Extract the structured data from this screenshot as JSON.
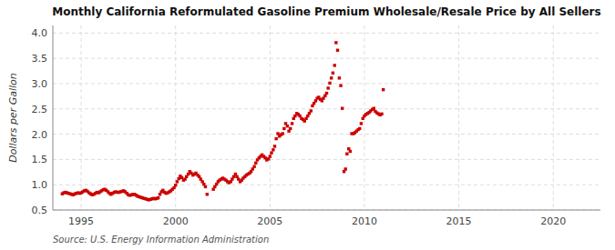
{
  "chart_data": {
    "type": "scatter",
    "title": "Monthly California Reformulated Gasoline Premium Wholesale/Resale Price by All Sellers",
    "ylabel": "Dollars per Gallon",
    "annotations": [
      "Source: U.S. Energy Information Administration"
    ],
    "xlim": [
      1993.5,
      2022.5
    ],
    "ylim": [
      0.5,
      4.15
    ],
    "xticks": [
      1995,
      2000,
      2005,
      2010,
      2015,
      2020
    ],
    "yticks": [
      0.5,
      {
        "value": 1.0,
        "label": "1.0"
      },
      1.5,
      {
        "value": 2.0,
        "label": "2.0"
      },
      2.5,
      {
        "value": 3.0,
        "label": "3.0"
      },
      3.5,
      {
        "value": 4.0,
        "label": "4.0"
      }
    ],
    "color": "#cc0000",
    "marker": "square",
    "grid": true,
    "x": [
      1994.0,
      1994.08,
      1994.17,
      1994.25,
      1994.33,
      1994.42,
      1994.5,
      1994.58,
      1994.67,
      1994.75,
      1994.83,
      1994.92,
      1995.0,
      1995.08,
      1995.17,
      1995.25,
      1995.33,
      1995.42,
      1995.5,
      1995.58,
      1995.67,
      1995.75,
      1995.83,
      1995.92,
      1996.0,
      1996.08,
      1996.17,
      1996.25,
      1996.33,
      1996.42,
      1996.5,
      1996.58,
      1996.67,
      1996.75,
      1996.83,
      1996.92,
      1997.0,
      1997.08,
      1997.17,
      1997.25,
      1997.33,
      1997.42,
      1997.5,
      1997.58,
      1997.67,
      1997.75,
      1997.83,
      1997.92,
      1998.0,
      1998.08,
      1998.17,
      1998.25,
      1998.33,
      1998.42,
      1998.5,
      1998.58,
      1998.67,
      1998.75,
      1998.83,
      1998.92,
      1999.0,
      1999.08,
      1999.17,
      1999.25,
      1999.33,
      1999.42,
      1999.5,
      1999.58,
      1999.67,
      1999.75,
      1999.83,
      1999.92,
      2000.0,
      2000.08,
      2000.17,
      2000.25,
      2000.33,
      2000.42,
      2000.5,
      2000.58,
      2000.67,
      2000.75,
      2000.83,
      2000.92,
      2001.0,
      2001.08,
      2001.17,
      2001.25,
      2001.33,
      2001.42,
      2001.5,
      2001.58,
      2001.67,
      2002.0,
      2002.08,
      2002.17,
      2002.25,
      2002.33,
      2002.42,
      2002.5,
      2002.58,
      2002.67,
      2002.75,
      2002.83,
      2002.92,
      2003.0,
      2003.08,
      2003.17,
      2003.25,
      2003.33,
      2003.42,
      2003.5,
      2003.58,
      2003.67,
      2003.75,
      2003.83,
      2003.92,
      2004.0,
      2004.08,
      2004.17,
      2004.25,
      2004.33,
      2004.42,
      2004.5,
      2004.58,
      2004.67,
      2004.75,
      2004.83,
      2004.92,
      2005.0,
      2005.08,
      2005.17,
      2005.25,
      2005.33,
      2005.42,
      2005.5,
      2005.58,
      2005.67,
      2005.75,
      2005.83,
      2005.92,
      2006.0,
      2006.08,
      2006.17,
      2006.25,
      2006.33,
      2006.42,
      2006.5,
      2006.58,
      2006.67,
      2006.75,
      2006.83,
      2006.92,
      2007.0,
      2007.08,
      2007.17,
      2007.25,
      2007.33,
      2007.42,
      2007.5,
      2007.58,
      2007.67,
      2007.75,
      2007.83,
      2007.92,
      2008.0,
      2008.08,
      2008.17,
      2008.25,
      2008.33,
      2008.42,
      2008.5,
      2008.58,
      2008.67,
      2008.75,
      2008.83,
      2008.92,
      2009.0,
      2009.08,
      2009.17,
      2009.25,
      2009.33,
      2009.42,
      2009.5,
      2009.58,
      2009.67,
      2009.75,
      2009.83,
      2009.92,
      2010.0,
      2010.08,
      2010.17,
      2010.25,
      2010.33,
      2010.42,
      2010.5,
      2010.58,
      2010.67,
      2010.75,
      2010.83,
      2010.92,
      2011.0
    ],
    "values": [
      0.82,
      0.84,
      0.85,
      0.84,
      0.83,
      0.82,
      0.81,
      0.8,
      0.82,
      0.83,
      0.84,
      0.83,
      0.84,
      0.86,
      0.88,
      0.89,
      0.87,
      0.84,
      0.82,
      0.8,
      0.81,
      0.83,
      0.85,
      0.84,
      0.86,
      0.88,
      0.9,
      0.91,
      0.89,
      0.86,
      0.83,
      0.81,
      0.83,
      0.85,
      0.86,
      0.85,
      0.85,
      0.86,
      0.87,
      0.88,
      0.86,
      0.83,
      0.8,
      0.79,
      0.8,
      0.81,
      0.81,
      0.79,
      0.77,
      0.76,
      0.75,
      0.74,
      0.73,
      0.72,
      0.71,
      0.7,
      0.71,
      0.72,
      0.73,
      0.72,
      0.73,
      0.74,
      0.81,
      0.86,
      0.89,
      0.85,
      0.83,
      0.84,
      0.86,
      0.88,
      0.91,
      0.94,
      0.99,
      1.06,
      1.12,
      1.17,
      1.14,
      1.09,
      1.11,
      1.16,
      1.21,
      1.26,
      1.23,
      1.19,
      1.21,
      1.23,
      1.19,
      1.16,
      1.11,
      1.06,
      1.01,
      0.96,
      0.81,
      0.91,
      0.96,
      1.01,
      1.06,
      1.09,
      1.11,
      1.13,
      1.11,
      1.09,
      1.06,
      1.04,
      1.06,
      1.11,
      1.16,
      1.21,
      1.16,
      1.11,
      1.06,
      1.09,
      1.13,
      1.16,
      1.19,
      1.21,
      1.23,
      1.26,
      1.31,
      1.36,
      1.43,
      1.49,
      1.53,
      1.56,
      1.59,
      1.56,
      1.53,
      1.49,
      1.51,
      1.56,
      1.63,
      1.69,
      1.76,
      1.91,
      2.01,
      1.96,
      1.99,
      2.01,
      2.11,
      2.21,
      2.16,
      2.06,
      2.11,
      2.21,
      2.31,
      2.36,
      2.41,
      2.39,
      2.36,
      2.31,
      2.29,
      2.26,
      2.31,
      2.36,
      2.41,
      2.46,
      2.56,
      2.61,
      2.66,
      2.71,
      2.73,
      2.69,
      2.66,
      2.71,
      2.76,
      2.81,
      2.91,
      3.01,
      3.11,
      3.21,
      3.36,
      3.81,
      3.66,
      3.11,
      2.96,
      2.51,
      1.26,
      1.31,
      1.61,
      1.71,
      1.66,
      2.01,
      2.01,
      2.03,
      2.06,
      2.09,
      2.11,
      2.21,
      2.31,
      2.36,
      2.39,
      2.41,
      2.43,
      2.46,
      2.49,
      2.51,
      2.45,
      2.42,
      2.4,
      2.38,
      2.4,
      2.88
    ]
  }
}
